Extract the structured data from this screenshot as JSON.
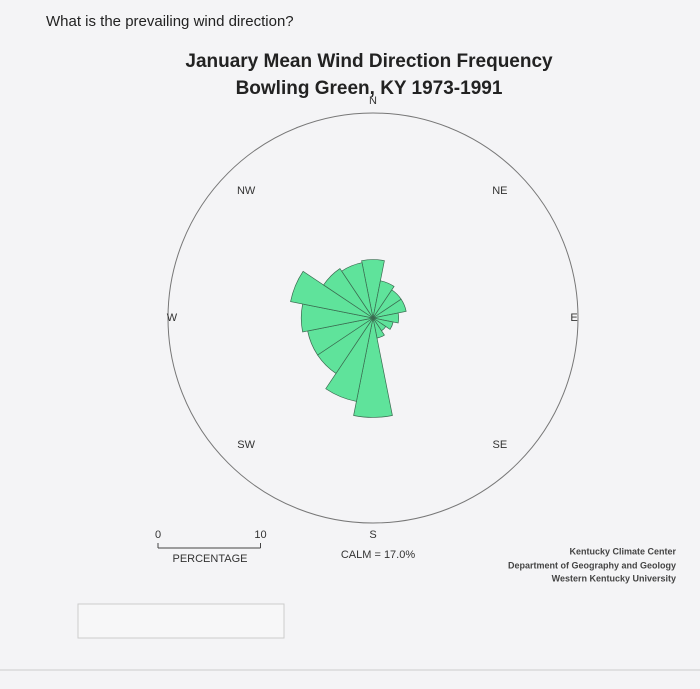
{
  "question": "What is the prevailing wind direction?",
  "chart_data": {
    "type": "wind-rose",
    "title": "January Mean Wind Direction Frequency",
    "subtitle": "Bowling Green, KY  1973-1991",
    "categories": [
      "N",
      null,
      "NE",
      null,
      "E",
      null,
      "SE",
      null,
      "S",
      null,
      "SW",
      null,
      "W",
      null,
      "NW",
      null
    ],
    "values": [
      5.7,
      3.7,
      3.3,
      3.3,
      2.5,
      2,
      1.5,
      2,
      9.7,
      8.3,
      6.5,
      6.5,
      7,
      8.2,
      5.8,
      5.5
    ],
    "color": "#5fe39b",
    "rlim": [
      0,
      20
    ],
    "scale_ticks": [
      0,
      10
    ],
    "scale_label": "PERCENTAGE",
    "annotation": "CALM = 17.0%",
    "credits": [
      "Kentucky Climate Center",
      "Department of Geography and Geology",
      "Western Kentucky University"
    ]
  }
}
